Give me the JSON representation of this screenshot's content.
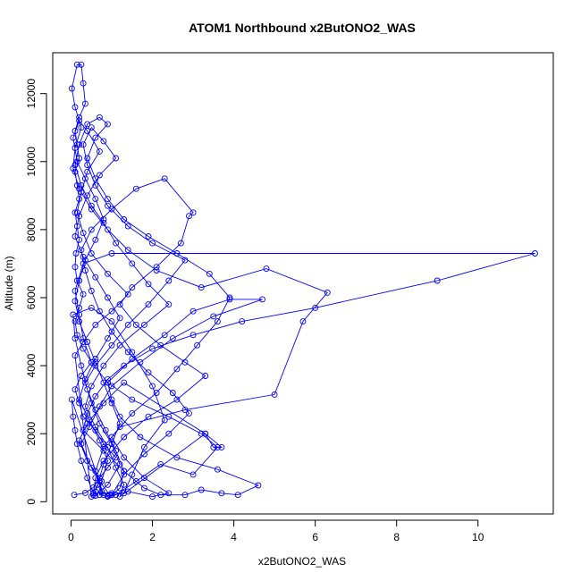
{
  "chart_data": {
    "type": "line",
    "title": "ATOM1 Northbound x2ButONO2_WAS",
    "xlabel": "x2ButONO2_WAS",
    "ylabel": "Altitude (m)",
    "xlim": [
      -0.45,
      11.85
    ],
    "ylim": [
      -360,
      13200
    ],
    "xticks": [
      0,
      2,
      4,
      6,
      8,
      10
    ],
    "yticks": [
      0,
      2000,
      4000,
      6000,
      8000,
      10000,
      12000
    ],
    "grid": false,
    "legend": "none",
    "series": [
      {
        "color": "#0000ff",
        "marker": "open-circle",
        "points": [
          [
            0.08,
            200
          ],
          [
            0.35,
            260
          ],
          [
            0.55,
            420
          ],
          [
            0.7,
            700
          ],
          [
            0.9,
            1000
          ],
          [
            1.1,
            1300
          ],
          [
            0.8,
            1700
          ],
          [
            0.6,
            2100
          ],
          [
            0.3,
            2500
          ],
          [
            0.2,
            2900
          ],
          [
            0.1,
            3300
          ],
          [
            0.25,
            3700
          ],
          [
            0.5,
            4100
          ],
          [
            0.3,
            4500
          ],
          [
            0.15,
            4900
          ],
          [
            0.1,
            5300
          ],
          [
            0.2,
            5700
          ],
          [
            0.3,
            6100
          ],
          [
            0.15,
            6500
          ],
          [
            0.1,
            6900
          ],
          [
            0.12,
            7300
          ],
          [
            0.2,
            7700
          ],
          [
            0.15,
            8100
          ],
          [
            0.1,
            8500
          ],
          [
            0.2,
            8900
          ],
          [
            0.15,
            9300
          ],
          [
            0.1,
            9700
          ],
          [
            0.2,
            10100
          ],
          [
            0.15,
            10500
          ],
          [
            0.1,
            10900
          ],
          [
            0.2,
            11300
          ],
          [
            0.35,
            11700
          ],
          [
            0.3,
            12300
          ],
          [
            0.25,
            12850
          ],
          [
            0.15,
            12850
          ],
          [
            0.02,
            12150
          ],
          [
            0.1,
            11600
          ],
          [
            0.25,
            11000
          ],
          [
            0.1,
            10400
          ],
          [
            0.05,
            9800
          ],
          [
            0.2,
            9200
          ],
          [
            0.5,
            8600
          ],
          [
            0.9,
            8000
          ],
          [
            1.4,
            7400
          ],
          [
            2.1,
            6800
          ],
          [
            3.2,
            6300
          ],
          [
            4.8,
            6850
          ],
          [
            6.3,
            6150
          ],
          [
            5.7,
            5300
          ],
          [
            5.0,
            3150
          ],
          [
            2.8,
            2700
          ],
          [
            1.2,
            2200
          ],
          [
            0.8,
            1600
          ],
          [
            0.6,
            900
          ],
          [
            0.75,
            300
          ],
          [
            0.9,
            180
          ],
          [
            1.1,
            200
          ],
          [
            1.6,
            600
          ],
          [
            2.2,
            1100
          ],
          [
            3.0,
            800
          ],
          [
            3.6,
            1600
          ],
          [
            3.2,
            2000
          ],
          [
            2.4,
            2500
          ],
          [
            1.5,
            3000
          ],
          [
            0.9,
            3500
          ],
          [
            0.5,
            4100
          ],
          [
            0.3,
            4800
          ],
          [
            0.2,
            5500
          ],
          [
            0.1,
            6200
          ],
          [
            0.3,
            7000
          ],
          [
            1.0,
            7300
          ],
          [
            11.4,
            7300
          ],
          [
            9.0,
            6500
          ],
          [
            6.0,
            5700
          ],
          [
            4.2,
            5300
          ],
          [
            3.0,
            4900
          ],
          [
            2.0,
            4500
          ],
          [
            1.3,
            4000
          ],
          [
            0.9,
            3600
          ],
          [
            0.6,
            3100
          ],
          [
            0.4,
            2600
          ],
          [
            0.3,
            2100
          ],
          [
            0.8,
            1500
          ],
          [
            1.3,
            900
          ],
          [
            1.8,
            400
          ],
          [
            2.2,
            200
          ],
          [
            2.8,
            200
          ],
          [
            3.2,
            350
          ],
          [
            3.7,
            250
          ],
          [
            4.1,
            200
          ],
          [
            4.6,
            480
          ],
          [
            3.6,
            950
          ],
          [
            2.6,
            1300
          ],
          [
            1.7,
            1900
          ],
          [
            1.2,
            2500
          ],
          [
            1.0,
            3000
          ],
          [
            0.9,
            3500
          ],
          [
            1.5,
            4200
          ],
          [
            2.3,
            4900
          ],
          [
            3.0,
            5600
          ],
          [
            3.9,
            5950
          ],
          [
            4.7,
            5950
          ],
          [
            3.5,
            5450
          ],
          [
            2.5,
            4800
          ],
          [
            1.7,
            4100
          ],
          [
            1.0,
            3400
          ],
          [
            0.7,
            2800
          ],
          [
            0.45,
            2200
          ],
          [
            0.25,
            1700
          ],
          [
            0.5,
            1000
          ],
          [
            0.7,
            600
          ],
          [
            0.95,
            200
          ],
          [
            1.0,
            200
          ],
          [
            1.3,
            800
          ],
          [
            1.8,
            1400
          ],
          [
            2.4,
            2000
          ],
          [
            2.9,
            2600
          ],
          [
            2.5,
            3200
          ],
          [
            1.9,
            3800
          ],
          [
            1.4,
            4400
          ],
          [
            1.0,
            5000
          ],
          [
            0.7,
            5600
          ],
          [
            0.5,
            6200
          ],
          [
            0.35,
            6800
          ],
          [
            0.25,
            7400
          ],
          [
            0.5,
            8000
          ],
          [
            1.0,
            8600
          ],
          [
            1.6,
            9200
          ],
          [
            2.3,
            9500
          ],
          [
            3.0,
            8500
          ],
          [
            2.9,
            8400
          ],
          [
            2.7,
            7600
          ],
          [
            2.1,
            6900
          ],
          [
            1.5,
            6300
          ],
          [
            1.2,
            5800
          ],
          [
            1.6,
            5200
          ],
          [
            2.2,
            4600
          ],
          [
            2.8,
            4100
          ],
          [
            3.3,
            3700
          ],
          [
            2.6,
            3000
          ],
          [
            1.9,
            2500
          ],
          [
            1.3,
            1900
          ],
          [
            0.8,
            1200
          ],
          [
            0.6,
            700
          ],
          [
            0.55,
            200
          ],
          [
            0.6,
            180
          ],
          [
            0.9,
            500
          ],
          [
            1.2,
            1100
          ],
          [
            1.0,
            1700
          ],
          [
            0.7,
            2300
          ],
          [
            0.5,
            2900
          ],
          [
            0.35,
            3500
          ],
          [
            0.6,
            4000
          ],
          [
            1.0,
            4600
          ],
          [
            1.4,
            5200
          ],
          [
            1.9,
            5800
          ],
          [
            2.4,
            6500
          ],
          [
            2.8,
            7100
          ],
          [
            2.0,
            7600
          ],
          [
            1.4,
            8100
          ],
          [
            0.9,
            8700
          ],
          [
            0.6,
            9300
          ],
          [
            0.4,
            9900
          ],
          [
            0.3,
            10500
          ],
          [
            0.5,
            11000
          ],
          [
            0.8,
            10600
          ],
          [
            1.1,
            10100
          ],
          [
            0.7,
            9600
          ],
          [
            0.4,
            9000
          ],
          [
            0.2,
            8400
          ],
          [
            0.1,
            7800
          ],
          [
            0.3,
            7200
          ],
          [
            0.6,
            6600
          ],
          [
            0.9,
            6000
          ],
          [
            1.2,
            5400
          ],
          [
            0.9,
            4800
          ],
          [
            0.6,
            4200
          ],
          [
            0.35,
            3600
          ],
          [
            0.2,
            3000
          ],
          [
            0.45,
            2400
          ],
          [
            0.7,
            1800
          ],
          [
            0.9,
            1200
          ],
          [
            0.75,
            600
          ],
          [
            0.7,
            200
          ],
          [
            0.9,
            150
          ],
          [
            1.4,
            300
          ],
          [
            2.0,
            150
          ],
          [
            2.4,
            250
          ],
          [
            1.8,
            700
          ],
          [
            1.3,
            1300
          ],
          [
            1.0,
            1900
          ],
          [
            1.5,
            2600
          ],
          [
            2.1,
            3200
          ],
          [
            2.6,
            3900
          ],
          [
            3.1,
            4600
          ],
          [
            3.6,
            5300
          ],
          [
            3.9,
            6000
          ],
          [
            3.4,
            6700
          ],
          [
            2.6,
            7300
          ],
          [
            1.9,
            7800
          ],
          [
            1.3,
            8300
          ],
          [
            0.9,
            8900
          ],
          [
            0.6,
            9500
          ],
          [
            0.4,
            10100
          ],
          [
            0.6,
            10700
          ],
          [
            0.9,
            11100
          ],
          [
            0.7,
            11300
          ],
          [
            0.4,
            11100
          ],
          [
            0.2,
            10500
          ],
          [
            0.1,
            9900
          ],
          [
            0.25,
            9300
          ],
          [
            0.5,
            8700
          ],
          [
            0.8,
            8200
          ],
          [
            1.1,
            7600
          ],
          [
            1.5,
            7000
          ],
          [
            1.9,
            6400
          ],
          [
            2.4,
            5800
          ],
          [
            1.8,
            5200
          ],
          [
            1.2,
            4600
          ],
          [
            0.8,
            4000
          ],
          [
            0.5,
            3400
          ],
          [
            0.35,
            2800
          ],
          [
            0.6,
            2200
          ],
          [
            0.9,
            1600
          ],
          [
            1.1,
            1000
          ],
          [
            1.3,
            500
          ],
          [
            1.2,
            150
          ],
          [
            3.3,
            2000
          ],
          [
            3.5,
            1600
          ],
          [
            3.7,
            1600
          ],
          [
            3.3,
            2000
          ],
          [
            1.3,
            3500
          ],
          [
            0.8,
            2900
          ],
          [
            0.4,
            2300
          ],
          [
            0.2,
            1800
          ],
          [
            0.4,
            1200
          ],
          [
            0.7,
            700
          ],
          [
            0.6,
            300
          ],
          [
            0.5,
            150
          ],
          [
            0.1,
            4300
          ],
          [
            0.3,
            4700
          ],
          [
            0.6,
            5200
          ],
          [
            1.0,
            5600
          ],
          [
            1.4,
            6100
          ],
          [
            0.9,
            6700
          ],
          [
            0.5,
            7300
          ],
          [
            0.3,
            7900
          ],
          [
            0.15,
            8500
          ],
          [
            0.25,
            9100
          ],
          [
            0.4,
            9700
          ],
          [
            0.7,
            10300
          ],
          [
            0.4,
            10900
          ],
          [
            0.2,
            11200
          ],
          [
            0.05,
            10700
          ],
          [
            0.15,
            10000
          ],
          [
            0.35,
            9500
          ],
          [
            0.6,
            8900
          ],
          [
            0.8,
            8300
          ],
          [
            0.6,
            7700
          ],
          [
            0.35,
            7100
          ],
          [
            0.2,
            6500
          ],
          [
            0.1,
            5900
          ],
          [
            0.2,
            5300
          ],
          [
            0.4,
            4700
          ],
          [
            0.6,
            4100
          ],
          [
            0.8,
            3500
          ],
          [
            1.0,
            2900
          ],
          [
            1.2,
            2300
          ],
          [
            1.0,
            1700
          ],
          [
            0.8,
            1100
          ],
          [
            0.65,
            500
          ],
          [
            0.8,
            200
          ],
          [
            0.02,
            3000
          ],
          [
            0.05,
            2500
          ],
          [
            0.1,
            2100
          ],
          [
            0.15,
            1700
          ],
          [
            0.25,
            1200
          ],
          [
            0.4,
            700
          ],
          [
            0.55,
            250
          ],
          [
            1.0,
            250
          ],
          [
            1.3,
            250
          ],
          [
            1.5,
            800
          ],
          [
            1.8,
            1600
          ],
          [
            2.3,
            2400
          ],
          [
            2.0,
            3400
          ],
          [
            1.5,
            4400
          ],
          [
            1.0,
            5300
          ],
          [
            0.5,
            5700
          ],
          [
            0.05,
            5500
          ],
          [
            0.1,
            4800
          ],
          [
            0.25,
            4000
          ],
          [
            0.4,
            3300
          ],
          [
            0.6,
            2700
          ],
          [
            0.85,
            2100
          ],
          [
            1.1,
            1500
          ],
          [
            1.3,
            900
          ],
          [
            1.2,
            400
          ],
          [
            1.0,
            200
          ]
        ]
      }
    ]
  }
}
